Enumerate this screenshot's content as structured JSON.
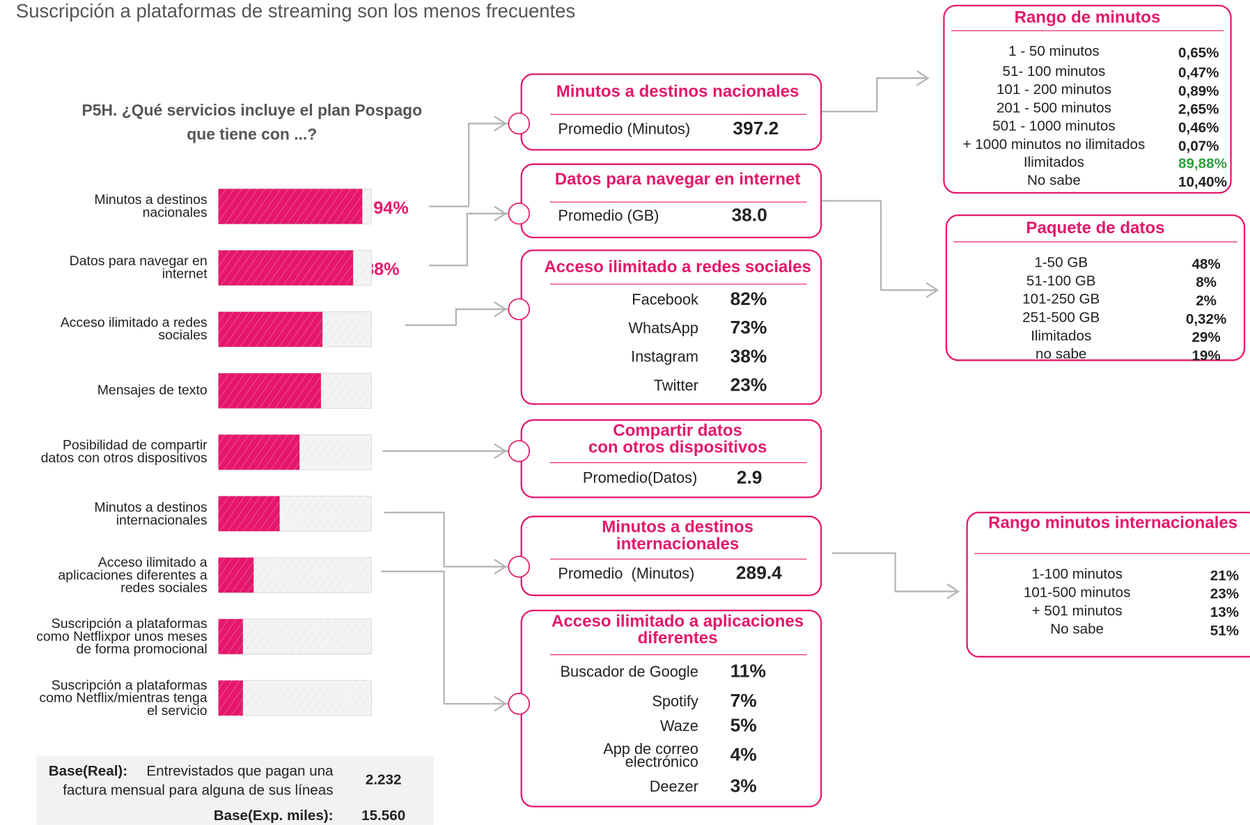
{
  "header": {
    "title": "Suscripción a plataformas de streaming son los menos frecuentes"
  },
  "chart_data": {
    "type": "bar",
    "orientation": "horizontal",
    "title": "P5H. ¿Qué servicios incluye el plan Pospago\nque tiene con ...?",
    "categories": [
      "Minutos a destinos\nnacionales",
      "Datos para navegar en\ninternet",
      "Acceso ilimitado a redes\nsociales",
      "Mensajes de texto",
      "Posibilidad de compartir\ndatos con otros dispositivos",
      "Minutos a destinos\ninternacionales",
      "Acceso ilimitado a\naplicaciones diferentes a\nredes sociales",
      "Suscripción a plataformas\ncomo Netflixpor unos meses\nde forma promocional",
      "Suscripción a plataformas\ncomo Netflix/mientras tenga\nel servicio"
    ],
    "values": [
      94,
      88,
      68,
      67,
      53,
      40,
      23,
      16,
      16
    ],
    "value_labels": [
      "94%",
      "88%",
      "68%",
      "67%",
      "53%",
      "40%",
      "23%",
      "16%",
      "16%"
    ],
    "color": "#e5176b",
    "xlim": [
      0,
      100
    ]
  },
  "boxes": [
    {
      "title": "Minutos a destinos nacionales",
      "rows": [
        {
          "label": "Promedio (Minutos)",
          "value": "397.2"
        }
      ]
    },
    {
      "title": "Datos para navegar en internet",
      "rows": [
        {
          "label": "Promedio (GB)",
          "value": "38.0"
        }
      ]
    },
    {
      "title": "Acceso ilimitado a redes sociales",
      "rows": [
        {
          "label": "Facebook",
          "value": "82%"
        },
        {
          "label": "WhatsApp",
          "value": "73%"
        },
        {
          "label": "Instagram",
          "value": "38%"
        },
        {
          "label": "Twitter",
          "value": "23%"
        }
      ]
    },
    {
      "title": "Compartir datos\ncon otros dispositivos",
      "rows": [
        {
          "label": "Promedio(Datos)",
          "value": "2.9"
        }
      ]
    },
    {
      "title": "Minutos a destinos\ninternacionales",
      "rows": [
        {
          "label": "Promedio  (Minutos)",
          "value": "289.4"
        }
      ]
    },
    {
      "title": "Acceso ilimitado a aplicaciones\ndiferentes",
      "rows": [
        {
          "label": "Buscador de Google",
          "value": "11%"
        },
        {
          "label": "Spotify",
          "value": "7%"
        },
        {
          "label": "Waze",
          "value": "5%"
        },
        {
          "label": "App de correo\nelectrónico",
          "value": "4%"
        },
        {
          "label": "Deezer",
          "value": "3%"
        }
      ]
    }
  ],
  "ranges": [
    {
      "title": "Rango de minutos",
      "rows": [
        {
          "label": "1 - 50 minutos",
          "value": "0,65%"
        },
        {
          "label": "51- 100 minutos",
          "value": "0,47%"
        },
        {
          "label": "101 - 200 minutos",
          "value": "0,89%"
        },
        {
          "label": "201 - 500 minutos",
          "value": "2,65%"
        },
        {
          "label": "501 - 1000 minutos",
          "value": "0,46%"
        },
        {
          "label": "+ 1000 minutos no ilimitados",
          "value": "0,07%"
        },
        {
          "label": "Ilimitados",
          "value": "89,88%",
          "color": "#2e9e3e"
        },
        {
          "label": "No sabe",
          "value": "10,40%"
        }
      ]
    },
    {
      "title": "Paquete de datos",
      "rows": [
        {
          "label": "1-50 GB",
          "value": "48%"
        },
        {
          "label": "51-100 GB",
          "value": "8%"
        },
        {
          "label": "101-250 GB",
          "value": "2%"
        },
        {
          "label": "251-500 GB",
          "value": "0,32%"
        },
        {
          "label": "Ilimitados",
          "value": "29%"
        },
        {
          "label": "no sabe",
          "value": "19%"
        }
      ]
    },
    {
      "title": "Rango minutos internacionales",
      "rows": [
        {
          "label": "1-100 minutos",
          "value": "21%"
        },
        {
          "label": "101-500 minutos",
          "value": "23%"
        },
        {
          "label": "+ 501 minutos",
          "value": "13%"
        },
        {
          "label": "No sabe",
          "value": "51%"
        }
      ]
    }
  ],
  "base": {
    "real_label": "Base(Real):",
    "real_text": "Entrevistados que pagan una\nfactura mensual para alguna de sus líneas",
    "real_value": "2.232",
    "exp_label": "Base(Exp. miles):",
    "exp_value": "15.560"
  }
}
